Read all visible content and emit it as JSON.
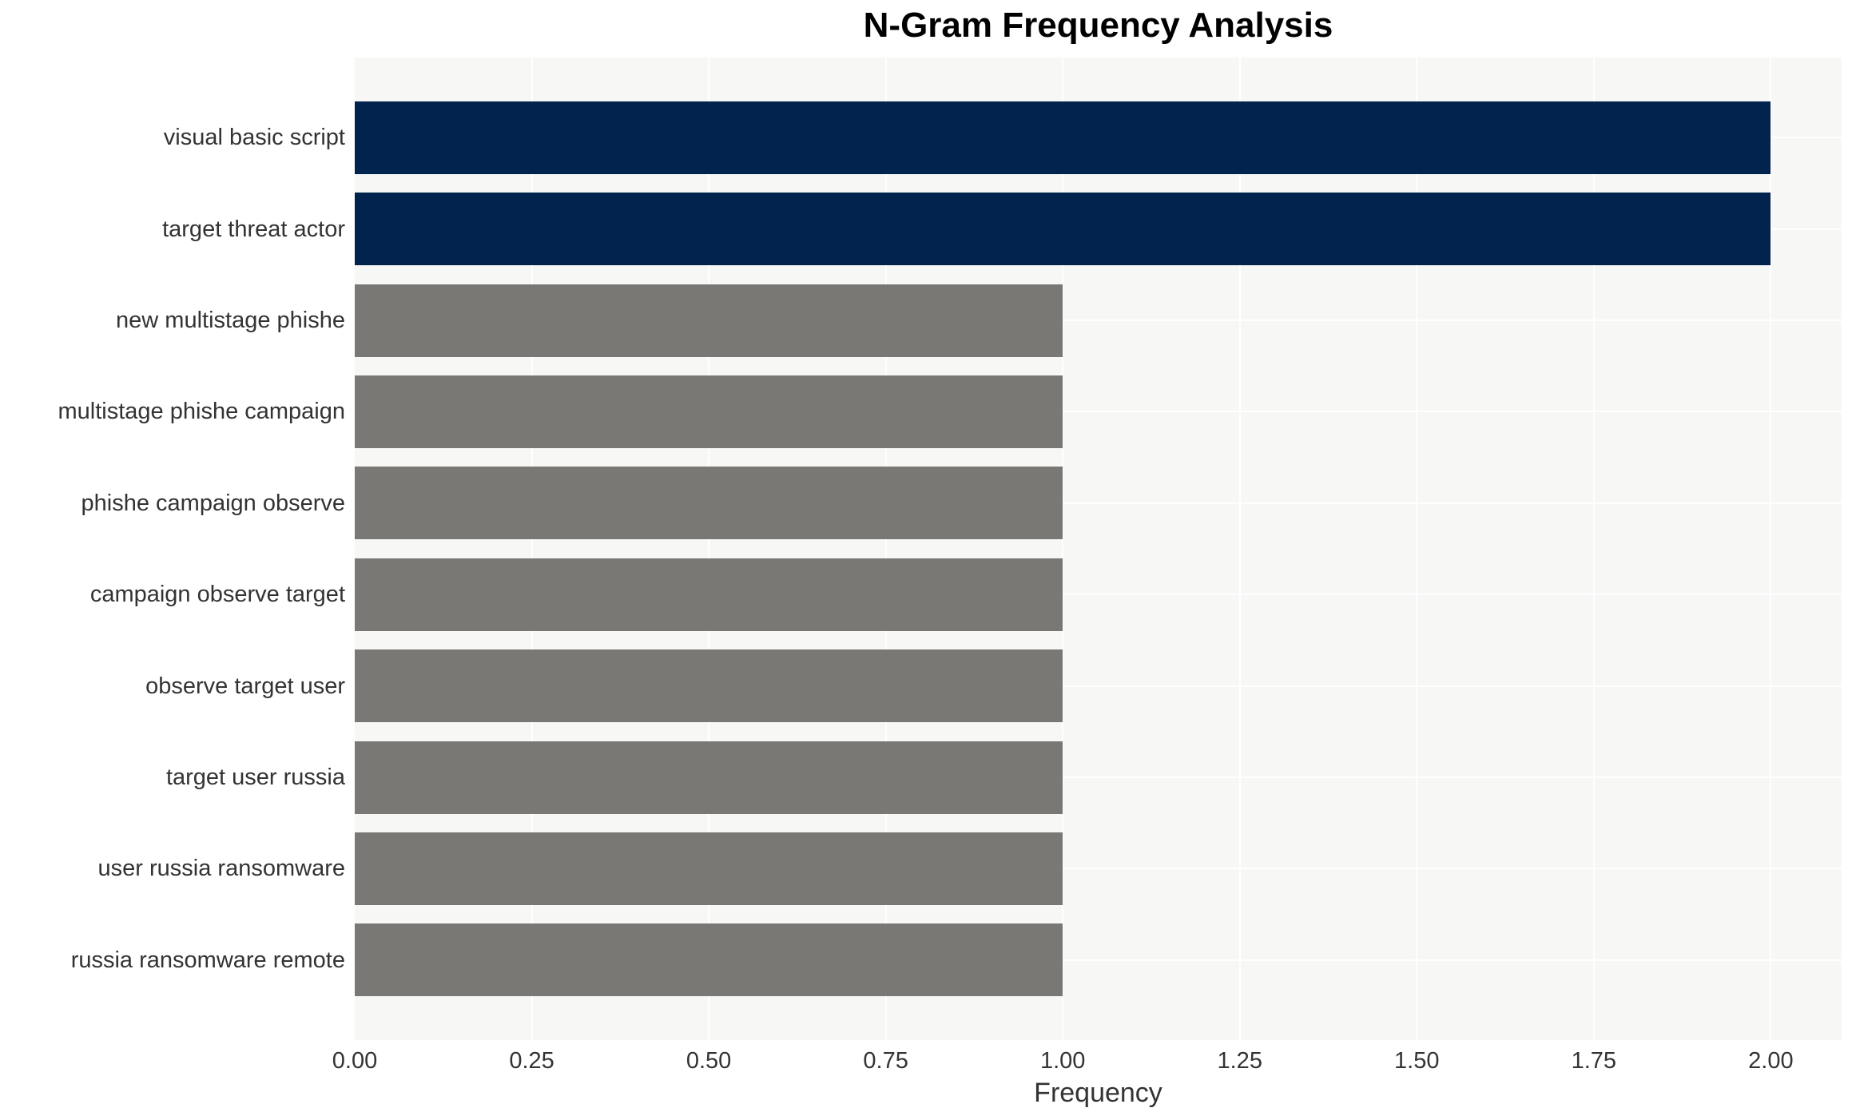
{
  "chart_data": {
    "type": "bar",
    "orientation": "horizontal",
    "title": "N-Gram Frequency Analysis",
    "xlabel": "Frequency",
    "ylabel": "",
    "categories": [
      "visual basic script",
      "target threat actor",
      "new multistage phishe",
      "multistage phishe campaign",
      "phishe campaign observe",
      "campaign observe target",
      "observe target user",
      "target user russia",
      "user russia ransomware",
      "russia ransomware remote"
    ],
    "values": [
      2,
      2,
      1,
      1,
      1,
      1,
      1,
      1,
      1,
      1
    ],
    "bar_colors": [
      "#02234d",
      "#02234d",
      "#7a7874",
      "#7a7874",
      "#7a7874",
      "#7a7874",
      "#7a7874",
      "#7a7874",
      "#7a7874",
      "#7a7874"
    ],
    "xlim": [
      0,
      2.1
    ],
    "xticks": [
      0.0,
      0.25,
      0.5,
      0.75,
      1.0,
      1.25,
      1.5,
      1.75,
      2.0
    ],
    "xtick_labels": [
      "0.00",
      "0.25",
      "0.50",
      "0.75",
      "1.00",
      "1.25",
      "1.50",
      "1.75",
      "2.00"
    ],
    "grid": true,
    "legend": false,
    "colors": {
      "highlight_bar": "#02234d",
      "default_bar": "#7a7874",
      "plot_background": "#f7f7f6",
      "gridline": "#ffffff",
      "figure_background": "#ffffff",
      "text": "#333333",
      "title_text": "#000000"
    }
  }
}
